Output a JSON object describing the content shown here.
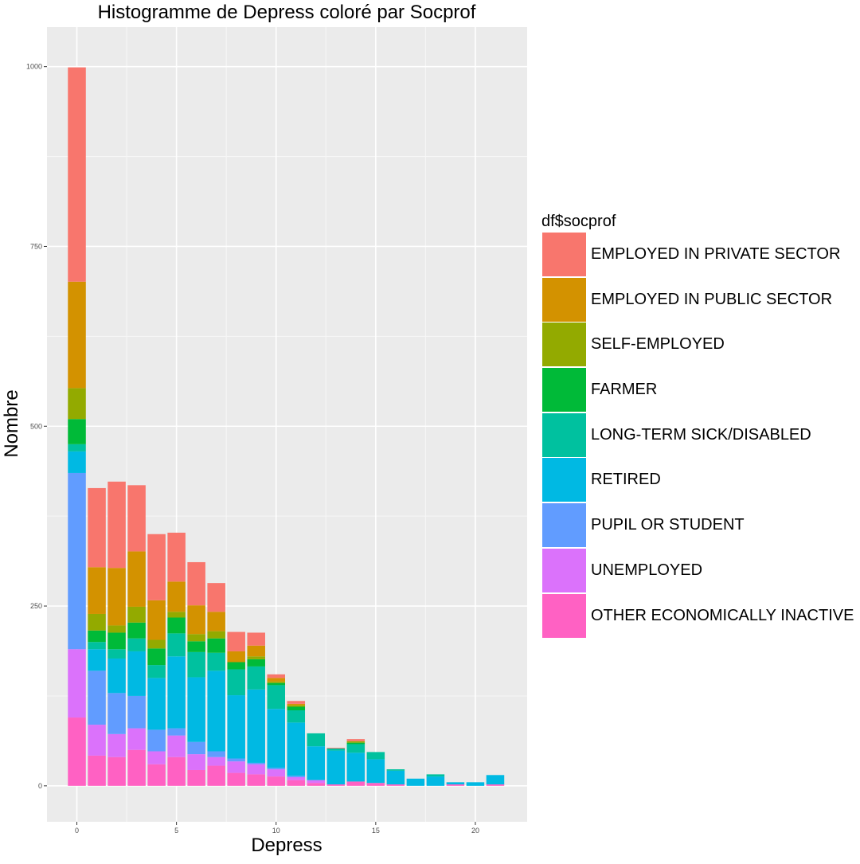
{
  "chart_data": {
    "type": "bar",
    "stacked": true,
    "title": "Histogramme de Depress coloré par Socprof",
    "xlabel": "Depress",
    "ylabel": "Nombre",
    "xlim": [
      -1.5,
      22.6
    ],
    "ylim": [
      -50,
      1055
    ],
    "x_ticks": [
      0,
      5,
      10,
      15,
      20
    ],
    "y_ticks": [
      0,
      250,
      500,
      750,
      1000
    ],
    "grid": true,
    "legend_title": "df$socprof",
    "legend_position": "right",
    "x": [
      0,
      1,
      2,
      3,
      4,
      5,
      6,
      7,
      8,
      9,
      10,
      11,
      12,
      13,
      14,
      15,
      16,
      17,
      18,
      19,
      20,
      21
    ],
    "series": [
      {
        "name": "OTHER ECONOMICALLY INACTIVE",
        "color": "#FF61C3",
        "values": [
          95,
          42,
          40,
          50,
          30,
          40,
          22,
          28,
          18,
          16,
          13,
          8,
          4,
          2,
          6,
          4,
          2,
          0,
          0,
          2,
          0,
          2
        ]
      },
      {
        "name": "UNEMPLOYED",
        "color": "#DB72FB",
        "values": [
          95,
          43,
          32,
          30,
          18,
          30,
          22,
          12,
          16,
          14,
          10,
          4,
          4,
          0,
          0,
          0,
          0,
          0,
          0,
          0,
          0,
          0
        ]
      },
      {
        "name": "PUPIL OR STUDENT",
        "color": "#619CFF",
        "values": [
          245,
          75,
          57,
          45,
          30,
          10,
          17,
          8,
          4,
          2,
          2,
          2,
          0,
          0,
          0,
          0,
          0,
          0,
          0,
          0,
          0,
          0
        ]
      },
      {
        "name": "RETIRED",
        "color": "#00B9E3",
        "values": [
          30,
          30,
          48,
          62,
          72,
          100,
          90,
          112,
          88,
          102,
          82,
          74,
          47,
          47,
          40,
          33,
          19,
          10,
          13,
          3,
          5,
          13
        ]
      },
      {
        "name": "LONG-TERM SICK/DISABLED",
        "color": "#00C19F",
        "values": [
          10,
          10,
          13,
          18,
          18,
          32,
          35,
          25,
          36,
          32,
          33,
          17,
          18,
          3,
          12,
          10,
          2,
          0,
          3,
          0,
          0,
          0
        ]
      },
      {
        "name": "FARMER",
        "color": "#00BA38",
        "values": [
          35,
          16,
          23,
          22,
          23,
          22,
          15,
          20,
          10,
          10,
          3,
          5,
          0,
          0,
          2,
          0,
          0,
          0,
          0,
          0,
          0,
          0
        ]
      },
      {
        "name": "SELF-EMPLOYED",
        "color": "#93AA00",
        "values": [
          43,
          23,
          10,
          22,
          12,
          8,
          10,
          10,
          0,
          4,
          2,
          2,
          0,
          0,
          2,
          0,
          0,
          0,
          0,
          0,
          0,
          0
        ]
      },
      {
        "name": "EMPLOYED IN PUBLIC SECTOR",
        "color": "#D39200",
        "values": [
          148,
          65,
          80,
          77,
          55,
          42,
          40,
          27,
          15,
          15,
          5,
          2,
          0,
          0,
          0,
          0,
          0,
          0,
          0,
          0,
          0,
          0
        ]
      },
      {
        "name": "EMPLOYED IN PRIVATE SECTOR",
        "color": "#F8766D",
        "values": [
          298,
          110,
          120,
          92,
          92,
          68,
          60,
          40,
          27,
          18,
          5,
          4,
          0,
          1,
          3,
          0,
          0,
          0,
          0,
          0,
          0,
          0
        ]
      }
    ]
  }
}
